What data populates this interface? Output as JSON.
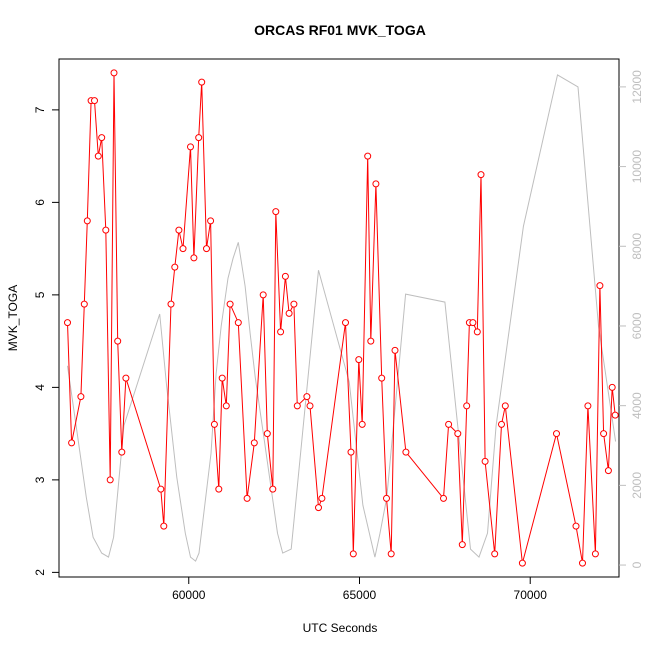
{
  "chart_data": {
    "type": "line",
    "title": "ORCAS RF01 MVK_TOGA",
    "xlabel": "UTC Seconds",
    "ylabel": "MVK_TOGA",
    "xlim": [
      56200,
      72600
    ],
    "ylim": [
      1.95,
      7.55
    ],
    "y2lim": [
      -300,
      12700
    ],
    "xticks": [
      60000,
      65000,
      70000
    ],
    "yticks": [
      2,
      3,
      4,
      5,
      6,
      7
    ],
    "y2ticks": [
      0,
      2000,
      4000,
      6000,
      8000,
      10000,
      12000
    ],
    "colors": {
      "primary": "#ff0000",
      "secondary": "#bebebe"
    },
    "series": [
      {
        "role": "primary",
        "style": "line+points",
        "x": [
          56450,
          56570,
          56840,
          56940,
          57030,
          57140,
          57240,
          57350,
          57450,
          57570,
          57700,
          57810,
          57920,
          58040,
          58160,
          59180,
          59270,
          59480,
          59590,
          59710,
          59830,
          60050,
          60150,
          60290,
          60380,
          60520,
          60640,
          60750,
          60880,
          60980,
          61100,
          61210,
          61450,
          61710,
          61920,
          62180,
          62300,
          62460,
          62550,
          62690,
          62830,
          62940,
          63080,
          63180,
          63460,
          63550,
          63800,
          63900,
          64590,
          64750,
          64820,
          64980,
          65080,
          65240,
          65330,
          65480,
          65650,
          65790,
          65930,
          66040,
          66360,
          67460,
          67610,
          67880,
          68010,
          68140,
          68220,
          68320,
          68450,
          68560,
          68680,
          68960,
          69160,
          69270,
          69770,
          70770,
          71340,
          71530,
          71690,
          71910,
          72040,
          72150,
          72290,
          72400,
          72490
        ],
        "y": [
          4.7,
          3.4,
          3.9,
          4.9,
          5.8,
          7.1,
          7.1,
          6.5,
          6.7,
          5.7,
          3.0,
          7.4,
          4.5,
          3.3,
          4.1,
          2.9,
          2.5,
          4.9,
          5.3,
          5.7,
          5.5,
          6.6,
          5.4,
          6.7,
          7.3,
          5.5,
          5.8,
          3.6,
          2.9,
          4.1,
          3.8,
          4.9,
          4.7,
          2.8,
          3.4,
          5.0,
          3.5,
          2.9,
          5.9,
          4.6,
          5.2,
          4.8,
          4.9,
          3.8,
          3.9,
          3.8,
          2.7,
          2.8,
          4.7,
          3.3,
          2.2,
          4.3,
          3.6,
          6.5,
          4.5,
          6.2,
          4.1,
          2.8,
          2.2,
          4.4,
          3.3,
          2.8,
          3.6,
          3.5,
          2.3,
          3.8,
          4.7,
          4.7,
          4.6,
          6.3,
          3.2,
          2.2,
          3.6,
          3.8,
          2.1,
          3.5,
          2.5,
          2.1,
          3.8,
          2.2,
          5.1,
          3.5,
          3.1,
          4.0,
          3.7
        ]
      },
      {
        "role": "secondary",
        "style": "line",
        "axis": "right",
        "x": [
          56450,
          56700,
          57000,
          57200,
          57450,
          57650,
          57800,
          58100,
          59150,
          59350,
          59650,
          59900,
          60050,
          60200,
          60300,
          60650,
          60800,
          60950,
          61150,
          61300,
          61450,
          61650,
          61800,
          61950,
          62200,
          62600,
          62750,
          63000,
          63800,
          64700,
          65100,
          65450,
          65600,
          65800,
          66350,
          67500,
          68250,
          68500,
          68750,
          69000,
          69800,
          70800,
          71400,
          72000,
          72500
        ],
        "y": [
          5000,
          3500,
          1700,
          700,
          300,
          200,
          700,
          3500,
          6300,
          4500,
          2200,
          800,
          200,
          100,
          300,
          2800,
          4800,
          6000,
          7200,
          7700,
          8100,
          7000,
          5800,
          4700,
          3200,
          800,
          300,
          400,
          7400,
          4600,
          1500,
          200,
          800,
          1700,
          6800,
          6600,
          400,
          200,
          800,
          3500,
          8500,
          12300,
          12000,
          6000,
          3100
        ]
      }
    ]
  }
}
